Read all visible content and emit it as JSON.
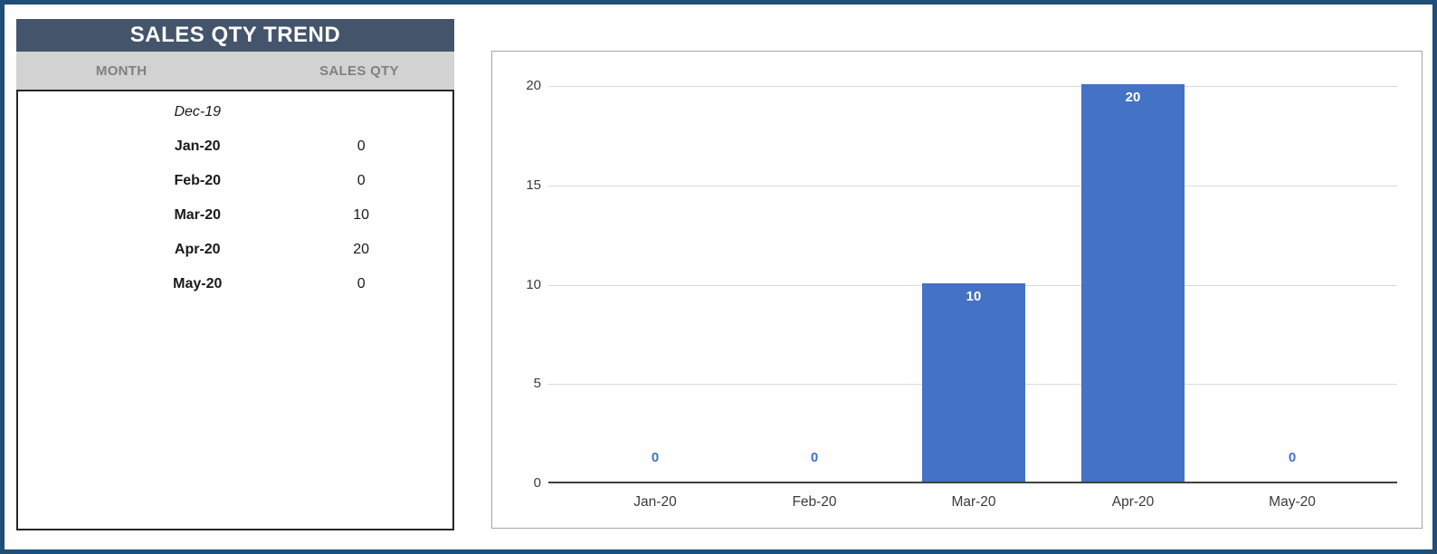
{
  "colors": {
    "frame_border": "#1F4E79",
    "title_bg": "#44546A",
    "header_bg": "#D2D2D2",
    "header_text": "#808080",
    "bar_fill": "#4472C4",
    "zero_label": "#4472C4",
    "gridline": "#D9D9D9",
    "axis_line": "#404040"
  },
  "table": {
    "title": "SALES QTY TREND",
    "columns": {
      "month": "MONTH",
      "qty": "SALES QTY"
    },
    "rows": [
      {
        "month": "Dec-19",
        "qty": "",
        "style": "italic"
      },
      {
        "month": "Jan-20",
        "qty": "0",
        "style": "bold"
      },
      {
        "month": "Feb-20",
        "qty": "0",
        "style": "bold"
      },
      {
        "month": "Mar-20",
        "qty": "10",
        "style": "bold"
      },
      {
        "month": "Apr-20",
        "qty": "20",
        "style": "bold"
      },
      {
        "month": "May-20",
        "qty": "0",
        "style": "bold"
      }
    ]
  },
  "chart_data": {
    "type": "bar",
    "categories": [
      "Jan-20",
      "Feb-20",
      "Mar-20",
      "Apr-20",
      "May-20"
    ],
    "values": [
      0,
      0,
      10,
      20,
      0
    ],
    "title": "",
    "xlabel": "",
    "ylabel": "",
    "ylim": [
      0,
      20
    ],
    "yticks": [
      0,
      5,
      10,
      15,
      20
    ],
    "grid": true,
    "legend": false,
    "data_labels": true,
    "bar_color": "#4472C4"
  }
}
